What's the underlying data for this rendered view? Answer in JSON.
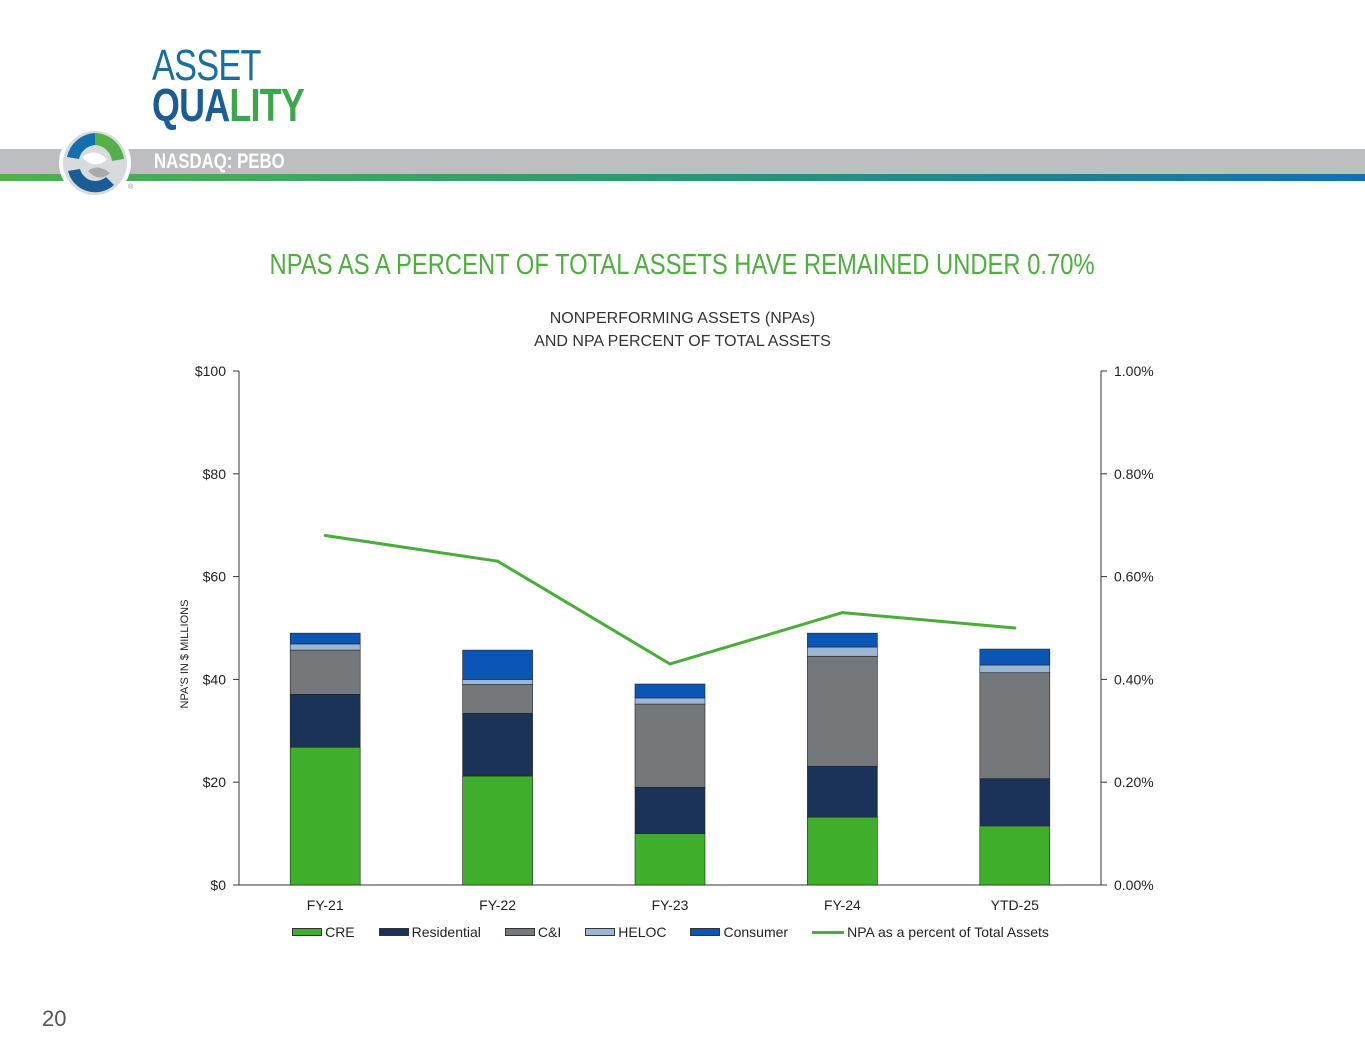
{
  "header": {
    "title_line1": "ASSET",
    "title_line2_part1": "QUA",
    "title_line2_part2": "LITY",
    "ticker": "NASDAQ: PEBO"
  },
  "page_number": "20",
  "colors": {
    "CRE": "#3fae2a",
    "Residential": "#1b3358",
    "C&I": "#75787b",
    "HELOC": "#9ab7d3",
    "Consumer": "#0b55b7",
    "line": "#4aad3a"
  },
  "chart_data": {
    "type": "bar",
    "stacked": true,
    "headline": "NPAS AS A PERCENT OF TOTAL ASSETS HAVE REMAINED UNDER 0.70%",
    "title_line1": "NONPERFORMING ASSETS (NPAs)",
    "title_line2": "AND NPA PERCENT OF TOTAL ASSETS",
    "ylabel": "NPA'S IN $ MILLIONS",
    "ylim": [
      0,
      100
    ],
    "y2lim": [
      0,
      1.0
    ],
    "y_ticks": [
      "$0",
      "$20",
      "$40",
      "$60",
      "$80",
      "$100"
    ],
    "y2_ticks": [
      "0.00%",
      "0.20%",
      "0.40%",
      "0.60%",
      "0.80%",
      "1.00%"
    ],
    "categories": [
      "FY-21",
      "FY-22",
      "FY-23",
      "FY-24",
      "YTD-25"
    ],
    "series": [
      {
        "name": "CRE",
        "values": [
          26.8,
          21.2,
          10.0,
          13.2,
          11.5
        ]
      },
      {
        "name": "Residential",
        "values": [
          10.3,
          12.2,
          9.0,
          9.9,
          9.2
        ]
      },
      {
        "name": "C&I",
        "values": [
          8.6,
          5.6,
          16.2,
          21.4,
          20.6
        ]
      },
      {
        "name": "HELOC",
        "values": [
          1.2,
          1.0,
          1.2,
          1.8,
          1.5
        ]
      },
      {
        "name": "Consumer",
        "values": [
          2.1,
          5.7,
          2.7,
          2.7,
          3.1
        ]
      }
    ],
    "line_series": {
      "name": "NPA as a percent of Total Assets",
      "values": [
        0.68,
        0.63,
        0.43,
        0.53,
        0.5
      ]
    },
    "legend": [
      "CRE",
      "Residential",
      "C&I",
      "HELOC",
      "Consumer",
      "NPA as a percent of Total Assets"
    ]
  }
}
